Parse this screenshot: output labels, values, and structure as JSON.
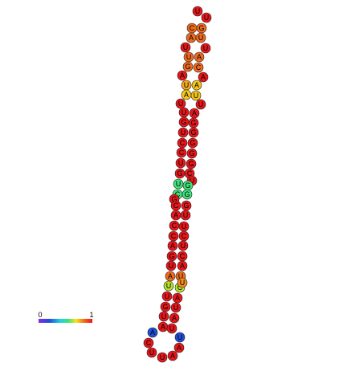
{
  "nodes": [
    {
      "base": "U",
      "color": "#e8161b"
    },
    {
      "base": "U",
      "color": "#e8161b"
    },
    {
      "base": "C",
      "color": "#f06a1e"
    },
    {
      "base": "G",
      "color": "#f06a1e"
    },
    {
      "base": "A",
      "color": "#f06a1e"
    },
    {
      "base": "U",
      "color": "#f06a1e"
    },
    {
      "base": "U",
      "color": "#e8161b"
    },
    {
      "base": "U",
      "color": "#e8161b"
    },
    {
      "base": "U",
      "color": "#f06a1e"
    },
    {
      "base": "A",
      "color": "#f06a1e"
    },
    {
      "base": "G",
      "color": "#f06a1e"
    },
    {
      "base": "C",
      "color": "#f06a1e"
    },
    {
      "base": "A",
      "color": "#e8161b"
    },
    {
      "base": "A",
      "color": "#e8161b"
    },
    {
      "base": "U",
      "color": "#f5a818"
    },
    {
      "base": "A",
      "color": "#f5c518"
    },
    {
      "base": "A",
      "color": "#f5c518"
    },
    {
      "base": "U",
      "color": "#f5c518"
    },
    {
      "base": "U",
      "color": "#e8161b"
    },
    {
      "base": "U",
      "color": "#e8161b"
    },
    {
      "base": "U",
      "color": "#e8161b"
    },
    {
      "base": "A",
      "color": "#e8161b"
    },
    {
      "base": "G",
      "color": "#e8161b"
    },
    {
      "base": "G",
      "color": "#e8161b"
    },
    {
      "base": "U",
      "color": "#e8161b"
    },
    {
      "base": "G",
      "color": "#e8161b"
    },
    {
      "base": "C",
      "color": "#e8161b"
    },
    {
      "base": "G",
      "color": "#e8161b"
    },
    {
      "base": "C",
      "color": "#e8161b"
    },
    {
      "base": "G",
      "color": "#e8161b"
    },
    {
      "base": "U",
      "color": "#e8161b"
    },
    {
      "base": "G",
      "color": "#e8161b"
    },
    {
      "base": "G",
      "color": "#e8161b"
    },
    {
      "base": "C",
      "color": "#e8161b"
    },
    {
      "base": "U",
      "color": "#e8161b"
    },
    {
      "base": "U",
      "color": "#3fe27a"
    },
    {
      "base": "G",
      "color": "#3fe27a"
    },
    {
      "base": "C",
      "color": "#3fe27a"
    },
    {
      "base": "G",
      "color": "#3fe27a"
    },
    {
      "base": "G",
      "color": "#e8161b"
    },
    {
      "base": "C",
      "color": "#e8161b"
    },
    {
      "base": "G",
      "color": "#e8161b"
    },
    {
      "base": "A",
      "color": "#e8161b"
    },
    {
      "base": "U",
      "color": "#e8161b"
    },
    {
      "base": "C",
      "color": "#e8161b"
    },
    {
      "base": "U",
      "color": "#e8161b"
    },
    {
      "base": "C",
      "color": "#e8161b"
    },
    {
      "base": "C",
      "color": "#e8161b"
    },
    {
      "base": "A",
      "color": "#e8161b"
    },
    {
      "base": "U",
      "color": "#e8161b"
    },
    {
      "base": "G",
      "color": "#e8161b"
    },
    {
      "base": "C",
      "color": "#e8161b"
    },
    {
      "base": "U",
      "color": "#e8161b"
    },
    {
      "base": "A",
      "color": "#e8161b"
    },
    {
      "base": "A",
      "color": "#f06a1e"
    },
    {
      "base": "U",
      "color": "#f06a1e"
    },
    {
      "base": "U",
      "color": "#b6e22e"
    },
    {
      "base": "C",
      "color": "#b6e22e"
    },
    {
      "base": "U",
      "color": "#f08a1e"
    },
    {
      "base": "U",
      "color": "#e8161b"
    },
    {
      "base": "A",
      "color": "#e8161b"
    },
    {
      "base": "G",
      "color": "#e8161b"
    },
    {
      "base": "U",
      "color": "#e8161b"
    },
    {
      "base": "U",
      "color": "#e8161b"
    },
    {
      "base": "A",
      "color": "#e8161b"
    },
    {
      "base": "A",
      "color": "#e8161b"
    },
    {
      "base": "U",
      "color": "#e8161b"
    },
    {
      "base": "A",
      "color": "#1f4fd6"
    },
    {
      "base": "U",
      "color": "#1f4fd6"
    },
    {
      "base": "C",
      "color": "#e8161b"
    },
    {
      "base": "A",
      "color": "#e8161b"
    },
    {
      "base": "U",
      "color": "#e8161b"
    },
    {
      "base": "U",
      "color": "#e8161b"
    },
    {
      "base": "A",
      "color": "#e8161b"
    }
  ],
  "colorbar": {
    "min": 0,
    "max": 1
  }
}
